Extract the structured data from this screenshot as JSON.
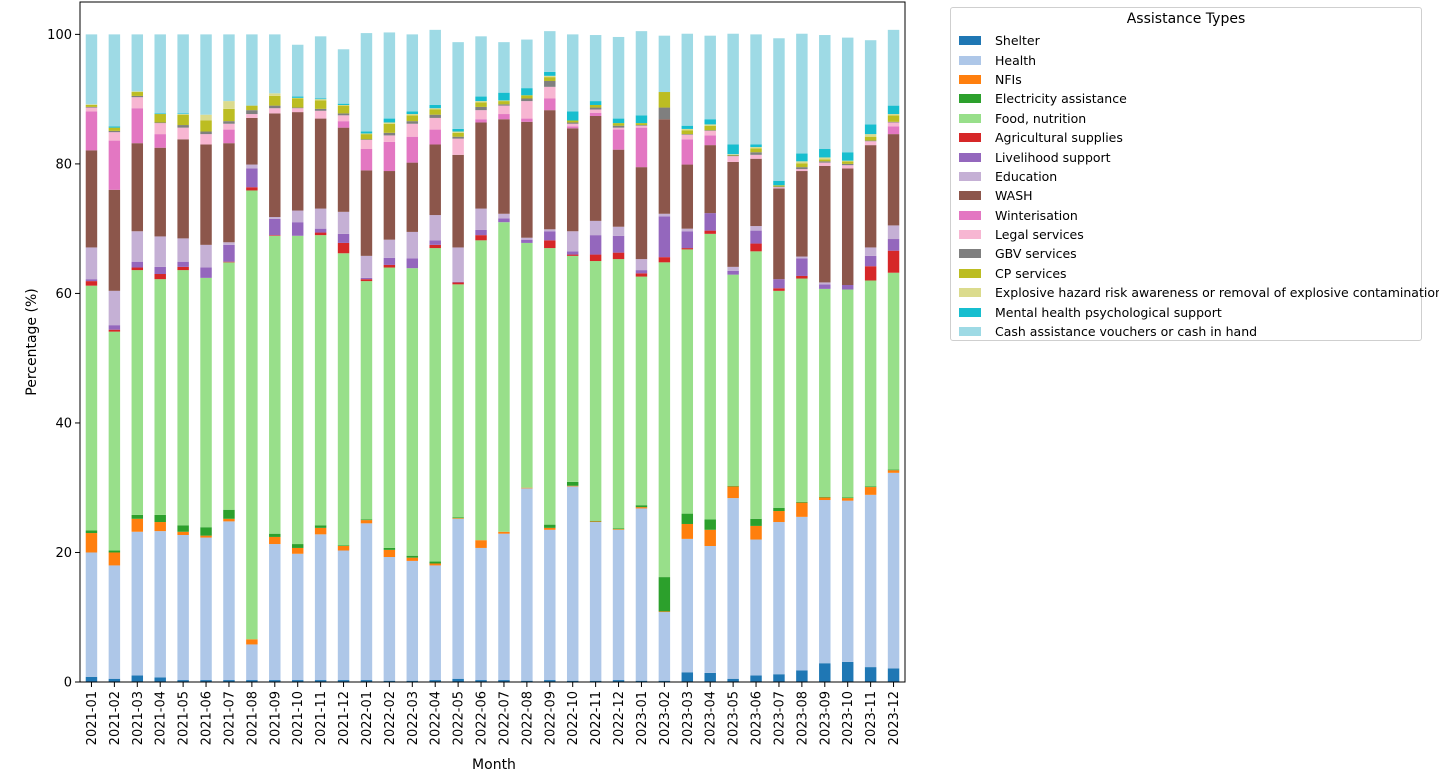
{
  "chart_data": {
    "type": "bar",
    "stacked": true,
    "xlabel": "Month",
    "ylabel": "Percentage (%)",
    "ylim": [
      0,
      100
    ],
    "yticks": [
      0,
      20,
      40,
      60,
      80,
      100
    ],
    "grid": false,
    "legend_title": "Assistance Types",
    "legend_position": "outside-right-top",
    "categories": [
      "2021-01",
      "2021-02",
      "2021-03",
      "2021-04",
      "2021-05",
      "2021-06",
      "2021-07",
      "2021-08",
      "2021-09",
      "2021-10",
      "2021-11",
      "2021-12",
      "2022-01",
      "2022-02",
      "2022-03",
      "2022-04",
      "2022-05",
      "2022-06",
      "2022-07",
      "2022-08",
      "2022-09",
      "2022-10",
      "2022-11",
      "2022-12",
      "2023-01",
      "2023-02",
      "2023-03",
      "2023-04",
      "2023-05",
      "2023-06",
      "2023-07",
      "2023-08",
      "2023-09",
      "2023-10",
      "2023-11",
      "2023-12"
    ],
    "series": [
      {
        "name": "Shelter",
        "color": "#1f77b4",
        "values": [
          0.8,
          0.5,
          1.0,
          0.7,
          0.3,
          0.3,
          0.3,
          0.3,
          0.3,
          0.3,
          0.3,
          0.3,
          0.3,
          0.2,
          0.2,
          0.3,
          0.5,
          0.3,
          0.3,
          0.2,
          0.3,
          0.2,
          0.2,
          0.3,
          0.2,
          0.2,
          1.5,
          1.4,
          0.5,
          1.0,
          1.2,
          1.8,
          2.9,
          3.1,
          2.3,
          2.1
        ]
      },
      {
        "name": "Health",
        "color": "#aec7e8",
        "values": [
          19.2,
          17.5,
          22.2,
          22.6,
          22.4,
          22.0,
          24.5,
          5.5,
          21.0,
          19.5,
          22.5,
          20.0,
          24.2,
          19.1,
          18.5,
          17.7,
          24.7,
          20.4,
          22.6,
          29.7,
          23.2,
          30.0,
          24.5,
          23.2,
          26.6,
          10.6,
          20.6,
          19.6,
          27.9,
          21.0,
          23.5,
          23.7,
          25.2,
          24.9,
          26.6,
          30.2
        ]
      },
      {
        "name": "NFIs",
        "color": "#ff7f0e",
        "values": [
          3.0,
          2.0,
          2.0,
          1.4,
          0.5,
          0.3,
          0.4,
          0.8,
          1.1,
          0.9,
          1.0,
          0.7,
          0.5,
          1.1,
          0.5,
          0.3,
          0.1,
          1.2,
          0.3,
          0.1,
          0.3,
          0.1,
          0.1,
          0.1,
          0.2,
          0.1,
          2.3,
          2.5,
          1.8,
          2.1,
          1.7,
          2.2,
          0.4,
          0.4,
          1.2,
          0.4
        ]
      },
      {
        "name": "Electricity assistance",
        "color": "#2ca02c",
        "values": [
          0.4,
          0.3,
          0.6,
          1.1,
          1.0,
          1.3,
          1.4,
          0,
          0.5,
          0.6,
          0.4,
          0.1,
          0.1,
          0.3,
          0.3,
          0.3,
          0.1,
          0,
          0,
          0,
          0.5,
          0.6,
          0.1,
          0.1,
          0.3,
          5.3,
          1.6,
          1.6,
          0.1,
          1.1,
          0.5,
          0.1,
          0.1,
          0.1,
          0.1,
          0.1
        ]
      },
      {
        "name": "Food, nutrition",
        "color": "#98df8a",
        "values": [
          37.8,
          33.8,
          37.8,
          36.4,
          39.4,
          38.5,
          38.2,
          69.3,
          46.0,
          47.6,
          44.8,
          45.1,
          36.8,
          43.3,
          44.4,
          48.4,
          36.0,
          46.3,
          47.8,
          37.8,
          42.7,
          34.9,
          40.1,
          41.6,
          35.3,
          48.6,
          40.8,
          44.1,
          32.6,
          41.3,
          33.5,
          34.5,
          32.1,
          32.1,
          31.8,
          30.4
        ]
      },
      {
        "name": "Agricultural supplies",
        "color": "#d62728",
        "values": [
          0.7,
          0.3,
          0.4,
          0.8,
          0.5,
          0,
          0.1,
          0.5,
          0.1,
          0,
          0.4,
          1.6,
          0.3,
          0.4,
          0,
          0.5,
          0.3,
          0.8,
          0,
          0,
          1.2,
          0.2,
          1.0,
          1.0,
          0.5,
          0.8,
          0.2,
          0.5,
          0,
          1.2,
          0.4,
          0.4,
          0,
          0,
          2.2,
          3.4
        ]
      },
      {
        "name": "Livelihood support",
        "color": "#9467bd",
        "values": [
          0.3,
          0.7,
          0.9,
          1.1,
          0.8,
          1.6,
          2.6,
          2.9,
          2.5,
          2.1,
          0.6,
          1.4,
          0.2,
          1.1,
          1.5,
          0.7,
          0.1,
          0.8,
          0.6,
          0.5,
          1.4,
          0.5,
          3.0,
          2.6,
          0.5,
          6.3,
          2.6,
          2.7,
          0.6,
          2.0,
          1.4,
          2.7,
          0.7,
          0.7,
          1.6,
          1.8
        ]
      },
      {
        "name": "Education",
        "color": "#c5b0d5",
        "values": [
          4.9,
          5.3,
          4.7,
          4.7,
          3.6,
          3.5,
          0.4,
          0.6,
          0.3,
          1.8,
          3.1,
          3.4,
          3.4,
          2.8,
          4.1,
          3.9,
          5.3,
          3.3,
          0.7,
          0.3,
          0.3,
          3.1,
          2.2,
          1.4,
          1.7,
          0.4,
          0.4,
          0,
          0.6,
          0.7,
          0,
          0.3,
          0.3,
          0,
          1.3,
          2.1
        ]
      },
      {
        "name": "WASH",
        "color": "#8c564b",
        "values": [
          15.0,
          15.6,
          13.6,
          13.7,
          15.3,
          15.5,
          15.3,
          7.2,
          16.0,
          15.2,
          13.9,
          13.0,
          13.2,
          10.6,
          10.7,
          10.9,
          14.3,
          13.3,
          14.6,
          17.9,
          18.4,
          15.9,
          16.2,
          11.9,
          14.2,
          14.6,
          9.9,
          10.5,
          16.2,
          10.4,
          14.0,
          13.2,
          18.0,
          18.0,
          15.8,
          14.1
        ]
      },
      {
        "name": "Winterisation",
        "color": "#e377c2",
        "values": [
          6.0,
          7.6,
          5.4,
          2.1,
          0,
          0,
          2.1,
          0,
          0,
          0,
          0,
          1.0,
          3.3,
          4.5,
          4.0,
          2.3,
          0,
          0.5,
          0.8,
          0.5,
          1.8,
          0.3,
          0.5,
          3.1,
          6.1,
          0,
          3.9,
          1.5,
          0,
          0,
          0,
          0,
          0,
          0,
          0,
          1.2
        ]
      },
      {
        "name": "Legal services",
        "color": "#f7b6d2",
        "values": [
          0.6,
          1.3,
          1.7,
          1.7,
          1.8,
          1.6,
          0.9,
          0.6,
          0.8,
          0.6,
          1.2,
          0.9,
          1.4,
          1.0,
          2.0,
          1.8,
          2.5,
          1.4,
          1.3,
          2.7,
          1.8,
          0.4,
          0.5,
          0.3,
          0.3,
          0,
          0.7,
          0.7,
          0.9,
          0.6,
          0.2,
          0.3,
          0.5,
          0.5,
          0.6,
          0.6
        ]
      },
      {
        "name": "GBV services",
        "color": "#7f7f7f",
        "values": [
          0.1,
          0.2,
          0.2,
          0.1,
          0.4,
          0.4,
          0.4,
          0.6,
          0.4,
          0.1,
          0.3,
          0.3,
          0.1,
          0.4,
          0.4,
          0.5,
          0.3,
          0.5,
          0.2,
          0.4,
          0.9,
          0.2,
          0.3,
          0.3,
          0.1,
          1.8,
          0.1,
          0.1,
          0.1,
          0.4,
          0.1,
          0.3,
          0.2,
          0.2,
          0.1,
          0.1
        ]
      },
      {
        "name": "CP services",
        "color": "#bcbd22",
        "values": [
          0.3,
          0.5,
          0.6,
          1.3,
          1.6,
          1.7,
          1.9,
          0.7,
          1.5,
          1.4,
          1.3,
          1.2,
          0.8,
          1.4,
          0.9,
          0.8,
          0.6,
          0.7,
          0.5,
          0.5,
          0.6,
          0.3,
          0.4,
          0.4,
          0.3,
          2.4,
          0.6,
          0.7,
          0.1,
          0.6,
          0.2,
          0.6,
          0.3,
          0.4,
          0.6,
          1.0
        ]
      },
      {
        "name": "Explosive hazard risk awareness or removal of explosive contamination",
        "color": "#dbdb8d",
        "values": [
          0.1,
          0,
          0.1,
          0,
          0.1,
          0.9,
          1.2,
          0,
          0.4,
          0.1,
          0.2,
          0.1,
          0.1,
          0.2,
          0.2,
          0.2,
          0.2,
          0.2,
          0.1,
          0,
          0.2,
          0,
          0,
          0,
          0,
          0,
          0.2,
          0.2,
          0.1,
          0.2,
          0,
          0.3,
          0.3,
          0.1,
          0.4,
          0.2
        ]
      },
      {
        "name": "Mental health psychological support",
        "color": "#17becf",
        "values": [
          0,
          0.2,
          0,
          0.1,
          0.1,
          0,
          0,
          0,
          0,
          0.2,
          0.1,
          0.2,
          0.3,
          0.6,
          0.4,
          0.5,
          0.4,
          0.7,
          1.2,
          1.1,
          0.6,
          1.4,
          0.6,
          0.7,
          1.2,
          0,
          0.5,
          0.8,
          1.5,
          0.4,
          0.7,
          1.2,
          1.3,
          1.3,
          1.5,
          1.3
        ]
      },
      {
        "name": "Cash assistance vouchers or cash in hand",
        "color": "#9edae5",
        "values": [
          10.8,
          14.2,
          8.8,
          12.2,
          12.2,
          12.4,
          10.3,
          11.0,
          9.1,
          8.0,
          9.6,
          8.4,
          15.2,
          13.3,
          11.9,
          11.6,
          13.4,
          9.3,
          7.8,
          7.5,
          6.3,
          11.9,
          10.2,
          12.6,
          13.0,
          8.7,
          14.2,
          12.9,
          17.1,
          17.0,
          22.0,
          18.5,
          17.6,
          17.7,
          13.0,
          11.7
        ]
      }
    ]
  }
}
